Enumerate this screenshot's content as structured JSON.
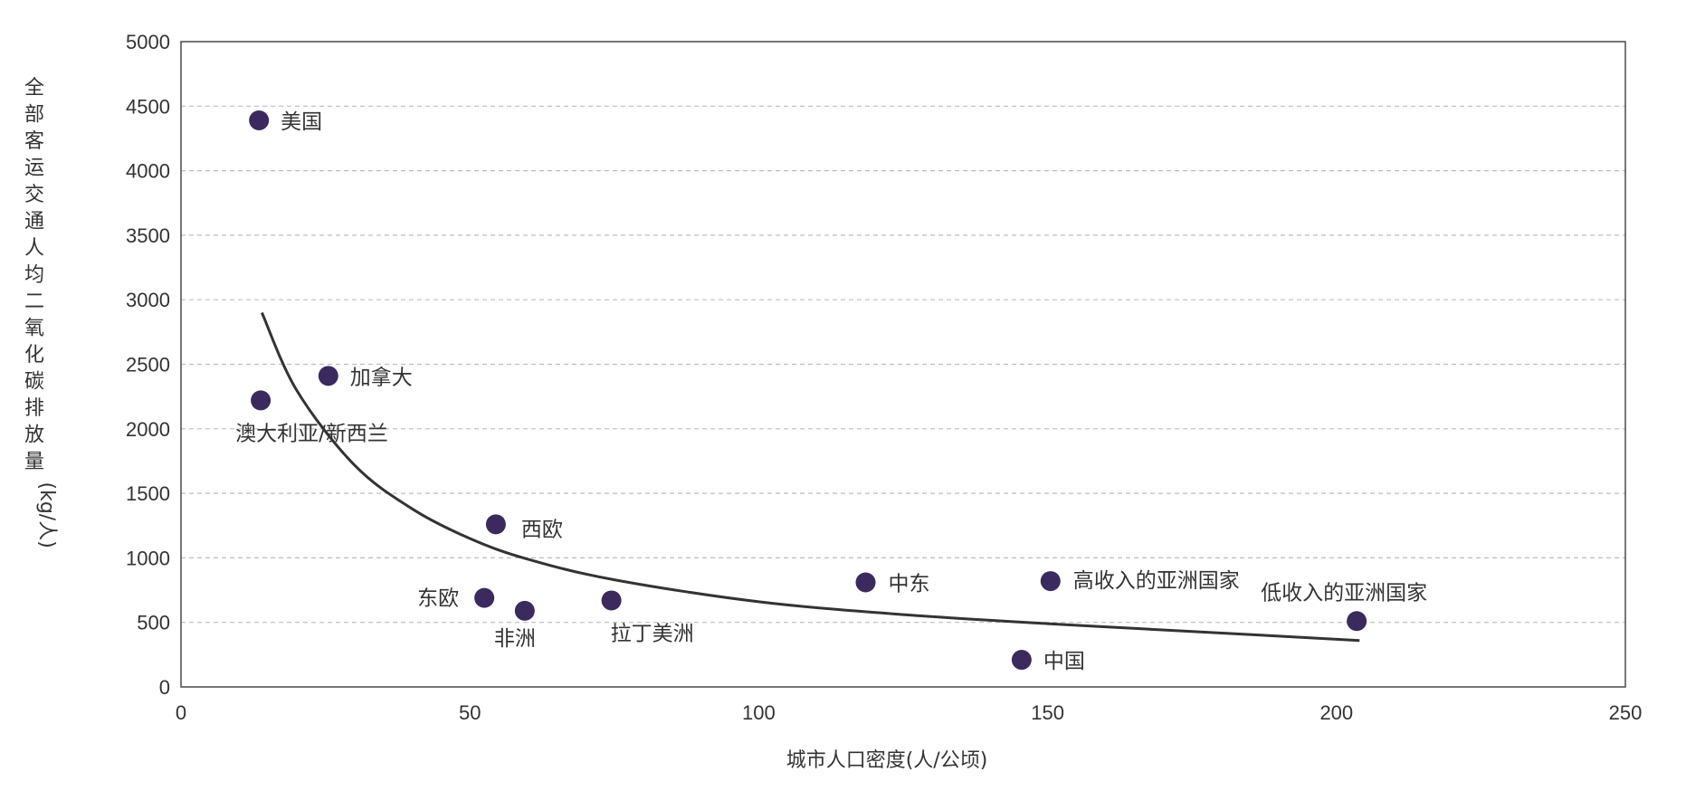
{
  "chart_data": {
    "type": "scatter",
    "title": "",
    "xlabel": "城市人口密度(人/公顷)",
    "ylabel": "全部客运交通人均二氧化碳排放量(kg/人)",
    "xlim": [
      0,
      250
    ],
    "ylim": [
      0,
      5000
    ],
    "xticks": [
      0,
      50,
      100,
      150,
      200,
      250
    ],
    "yticks": [
      0,
      500,
      1000,
      1500,
      2000,
      2500,
      3000,
      3500,
      4000,
      4500,
      5000
    ],
    "grid": "horizontal-dashed",
    "point_color": "#3b2a5e",
    "points": [
      {
        "label": "美国",
        "x": 13.5,
        "y": 4390
      },
      {
        "label": "加拿大",
        "x": 25.5,
        "y": 2410
      },
      {
        "label": "澳大利亚/新西兰",
        "x": 13.8,
        "y": 2220
      },
      {
        "label": "西欧",
        "x": 54.5,
        "y": 1260
      },
      {
        "label": "东欧",
        "x": 52.5,
        "y": 690
      },
      {
        "label": "非洲",
        "x": 59.5,
        "y": 590
      },
      {
        "label": "拉丁美洲",
        "x": 74.5,
        "y": 670
      },
      {
        "label": "中东",
        "x": 118.5,
        "y": 810
      },
      {
        "label": "高收入的亚洲国家",
        "x": 150.5,
        "y": 820
      },
      {
        "label": "中国",
        "x": 145.5,
        "y": 210
      },
      {
        "label": "低收入的亚洲国家",
        "x": 203.5,
        "y": 510
      }
    ],
    "trendline": {
      "type": "power",
      "points": [
        {
          "x": 14,
          "y": 2900
        },
        {
          "x": 20,
          "y": 2300
        },
        {
          "x": 30,
          "y": 1720
        },
        {
          "x": 40,
          "y": 1380
        },
        {
          "x": 50,
          "y": 1150
        },
        {
          "x": 60,
          "y": 990
        },
        {
          "x": 75,
          "y": 830
        },
        {
          "x": 100,
          "y": 660
        },
        {
          "x": 125,
          "y": 560
        },
        {
          "x": 150,
          "y": 490
        },
        {
          "x": 175,
          "y": 430
        },
        {
          "x": 204,
          "y": 360
        }
      ]
    }
  }
}
